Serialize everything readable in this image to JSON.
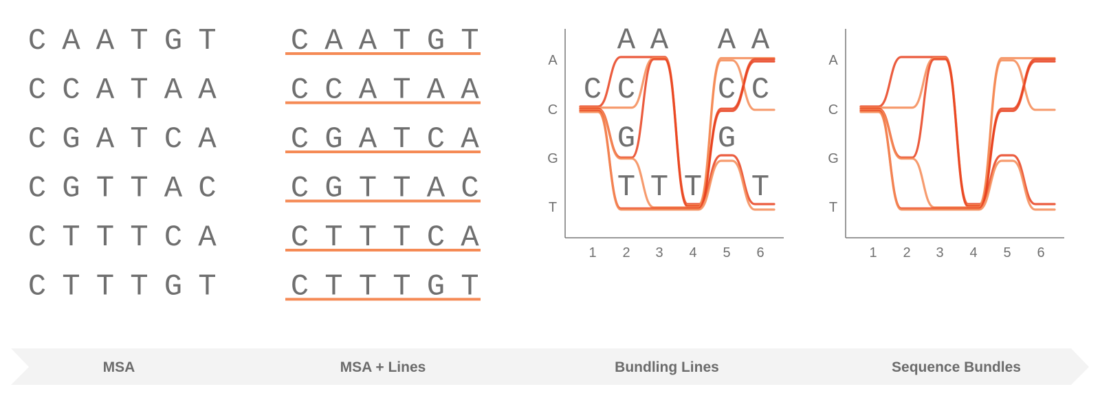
{
  "sequences": [
    "CAATGT",
    "CCATAA",
    "CGATCA",
    "CGTTAC",
    "CTTTCA",
    "CTTTGT"
  ],
  "nucleotides": [
    "A",
    "C",
    "G",
    "T"
  ],
  "positions": [
    "1",
    "2",
    "3",
    "4",
    "5",
    "6"
  ],
  "bundling_letters": [
    {
      "pos": 2,
      "nuc": "A",
      "text": "A"
    },
    {
      "pos": 3,
      "nuc": "A",
      "text": "A"
    },
    {
      "pos": 5,
      "nuc": "A",
      "text": "A"
    },
    {
      "pos": 6,
      "nuc": "A",
      "text": "A"
    },
    {
      "pos": 1,
      "nuc": "C",
      "text": "C"
    },
    {
      "pos": 2,
      "nuc": "C",
      "text": "C"
    },
    {
      "pos": 5,
      "nuc": "C",
      "text": "C"
    },
    {
      "pos": 6,
      "nuc": "C",
      "text": "C"
    },
    {
      "pos": 2,
      "nuc": "G",
      "text": "G"
    },
    {
      "pos": 5,
      "nuc": "G",
      "text": "G"
    },
    {
      "pos": 2,
      "nuc": "T",
      "text": "T"
    },
    {
      "pos": 3,
      "nuc": "T",
      "text": "T"
    },
    {
      "pos": 4,
      "nuc": "T",
      "text": "T"
    },
    {
      "pos": 6,
      "nuc": "T",
      "text": "T"
    }
  ],
  "stages": [
    "MSA",
    "MSA + Lines",
    "Bundling Lines",
    "Sequence Bundles"
  ],
  "colors": {
    "text": "#6f6f6f",
    "line": "#f58a55",
    "line_dark": "#e8401c",
    "banner": "#f3f3f3"
  }
}
